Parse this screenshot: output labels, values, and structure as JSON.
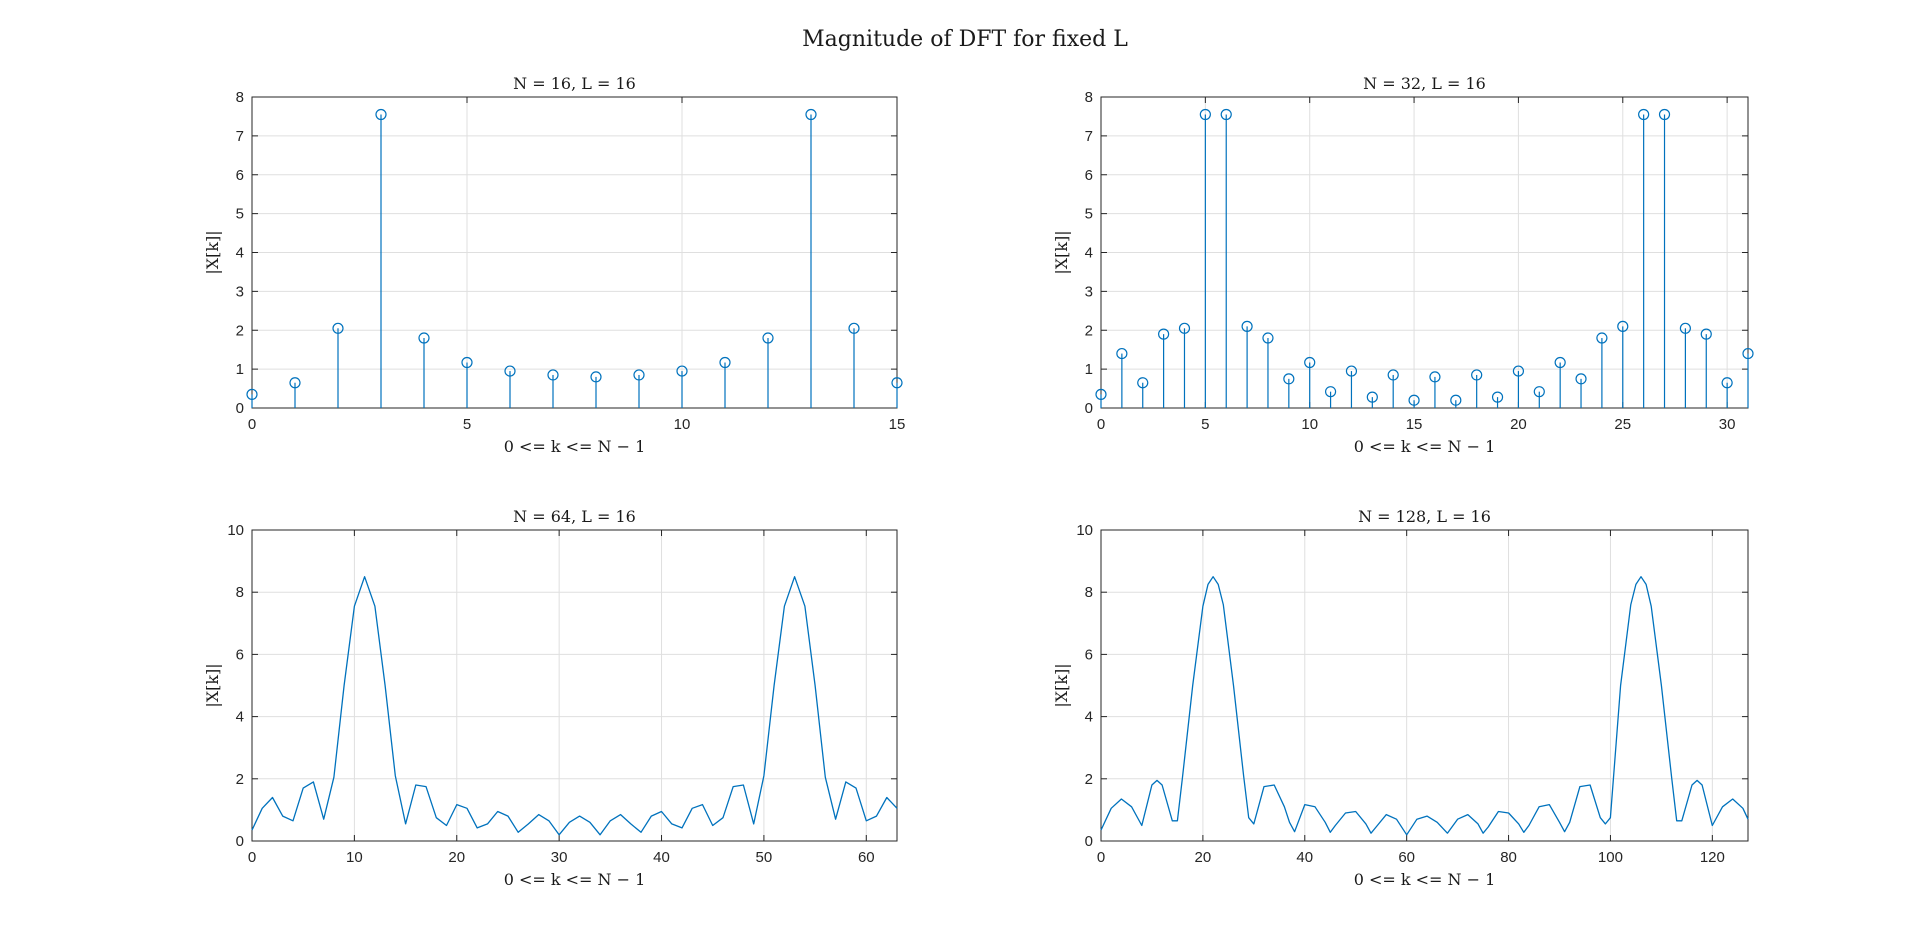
{
  "figure": {
    "title": "Magnitude of DFT for fixed L",
    "accent_color": "#0072BD"
  },
  "chart_data": [
    {
      "type": "stem",
      "title": "N = 16, L = 16",
      "xlabel": "0 <= k <= N − 1",
      "ylabel": "|X[k]|",
      "xlim": [
        0,
        15
      ],
      "ylim": [
        0,
        8
      ],
      "xticks": [
        0,
        5,
        10,
        15
      ],
      "yticks": [
        0,
        1,
        2,
        3,
        4,
        5,
        6,
        7,
        8
      ],
      "grid": true,
      "marker": "circle",
      "series": [
        {
          "x": [
            0,
            1,
            2,
            3,
            4,
            5,
            6,
            7,
            8,
            9,
            10,
            11,
            12,
            13,
            14,
            15
          ],
          "values": [
            0.35,
            0.65,
            2.05,
            7.55,
            1.8,
            1.17,
            0.95,
            0.85,
            0.8,
            0.85,
            0.95,
            1.17,
            1.8,
            7.55,
            2.05,
            0.65
          ]
        }
      ]
    },
    {
      "type": "stem",
      "title": "N = 32, L = 16",
      "xlabel": "0 <= k <= N − 1",
      "ylabel": "|X[k]|",
      "xlim": [
        0,
        31
      ],
      "ylim": [
        0,
        8
      ],
      "xticks": [
        0,
        5,
        10,
        15,
        20,
        25,
        30
      ],
      "yticks": [
        0,
        1,
        2,
        3,
        4,
        5,
        6,
        7,
        8
      ],
      "grid": true,
      "marker": "circle",
      "series": [
        {
          "x": [
            0,
            1,
            2,
            3,
            4,
            5,
            6,
            7,
            8,
            9,
            10,
            11,
            12,
            13,
            14,
            15,
            16,
            17,
            18,
            19,
            20,
            21,
            22,
            23,
            24,
            25,
            26,
            27,
            28,
            29,
            30,
            31
          ],
          "values": [
            0.35,
            1.4,
            0.65,
            1.9,
            2.05,
            7.55,
            7.55,
            2.1,
            1.8,
            0.75,
            1.17,
            0.42,
            0.95,
            0.28,
            0.85,
            0.2,
            0.8,
            0.2,
            0.85,
            0.28,
            0.95,
            0.42,
            1.17,
            0.75,
            1.8,
            2.1,
            7.55,
            7.55,
            2.05,
            1.9,
            0.65,
            1.4
          ]
        }
      ]
    },
    {
      "type": "line",
      "title": "N = 64, L = 16",
      "xlabel": "0 <= k <= N − 1",
      "ylabel": "|X[k]|",
      "xlim": [
        0,
        63
      ],
      "ylim": [
        0,
        10
      ],
      "xticks": [
        0,
        10,
        20,
        30,
        40,
        50,
        60
      ],
      "yticks": [
        0,
        2,
        4,
        6,
        8,
        10
      ],
      "grid": true,
      "series": [
        {
          "x": [
            0,
            1,
            2,
            3,
            4,
            5,
            6,
            7,
            8,
            9,
            10,
            11,
            12,
            13,
            14,
            15,
            16,
            17,
            18,
            19,
            20,
            21,
            22,
            23,
            24,
            25,
            26,
            27,
            28,
            29,
            30,
            31,
            32,
            33,
            34,
            35,
            36,
            37,
            38,
            39,
            40,
            41,
            42,
            43,
            44,
            45,
            46,
            47,
            48,
            49,
            50,
            51,
            52,
            53,
            54,
            55,
            56,
            57,
            58,
            59,
            60,
            61,
            62,
            63
          ],
          "values": [
            0.35,
            1.05,
            1.4,
            0.8,
            0.65,
            1.7,
            1.9,
            0.7,
            2.05,
            5.0,
            7.55,
            8.5,
            7.55,
            5.0,
            2.1,
            0.55,
            1.8,
            1.75,
            0.75,
            0.5,
            1.17,
            1.05,
            0.42,
            0.55,
            0.95,
            0.8,
            0.28,
            0.55,
            0.85,
            0.65,
            0.2,
            0.6,
            0.8,
            0.6,
            0.2,
            0.65,
            0.85,
            0.55,
            0.28,
            0.8,
            0.95,
            0.55,
            0.42,
            1.05,
            1.17,
            0.5,
            0.75,
            1.75,
            1.8,
            0.55,
            2.1,
            5.0,
            7.55,
            8.5,
            7.55,
            5.0,
            2.05,
            0.7,
            1.9,
            1.7,
            0.65,
            0.8,
            1.4,
            1.05
          ]
        }
      ]
    },
    {
      "type": "line",
      "title": "N = 128, L = 16",
      "xlabel": "0 <= k <= N − 1",
      "ylabel": "|X[k]|",
      "xlim": [
        0,
        127
      ],
      "ylim": [
        0,
        10
      ],
      "xticks": [
        0,
        20,
        40,
        60,
        80,
        100,
        120
      ],
      "yticks": [
        0,
        2,
        4,
        6,
        8,
        10
      ],
      "grid": true,
      "series": [
        {
          "x": [
            0,
            2,
            4,
            6,
            8,
            10,
            11,
            12,
            14,
            15,
            16,
            18,
            20,
            21,
            22,
            23,
            24,
            26,
            28,
            29,
            30,
            32,
            34,
            36,
            37,
            38,
            40,
            42,
            44,
            45,
            46,
            48,
            50,
            52,
            53,
            54,
            56,
            58,
            60,
            62,
            64,
            66,
            68,
            70,
            72,
            74,
            75,
            76,
            78,
            80,
            82,
            83,
            84,
            86,
            88,
            90,
            91,
            92,
            94,
            96,
            98,
            99,
            100,
            102,
            104,
            105,
            106,
            107,
            108,
            110,
            112,
            113,
            114,
            116,
            117,
            118,
            120,
            122,
            124,
            126,
            127
          ],
          "values": [
            0.35,
            1.05,
            1.35,
            1.1,
            0.5,
            1.8,
            1.95,
            1.8,
            0.65,
            0.65,
            2.05,
            5.0,
            7.55,
            8.25,
            8.5,
            8.25,
            7.6,
            5.0,
            2.1,
            0.75,
            0.55,
            1.75,
            1.8,
            1.1,
            0.6,
            0.3,
            1.17,
            1.1,
            0.6,
            0.28,
            0.5,
            0.9,
            0.95,
            0.55,
            0.25,
            0.45,
            0.85,
            0.7,
            0.2,
            0.7,
            0.8,
            0.6,
            0.25,
            0.7,
            0.85,
            0.55,
            0.25,
            0.45,
            0.95,
            0.9,
            0.55,
            0.28,
            0.5,
            1.1,
            1.17,
            0.6,
            0.3,
            0.6,
            1.75,
            1.8,
            0.75,
            0.55,
            0.75,
            5.0,
            7.6,
            8.25,
            8.5,
            8.25,
            7.55,
            5.0,
            2.05,
            0.65,
            0.65,
            1.8,
            1.95,
            1.8,
            0.5,
            1.1,
            1.35,
            1.05,
            0.7
          ]
        }
      ]
    }
  ]
}
